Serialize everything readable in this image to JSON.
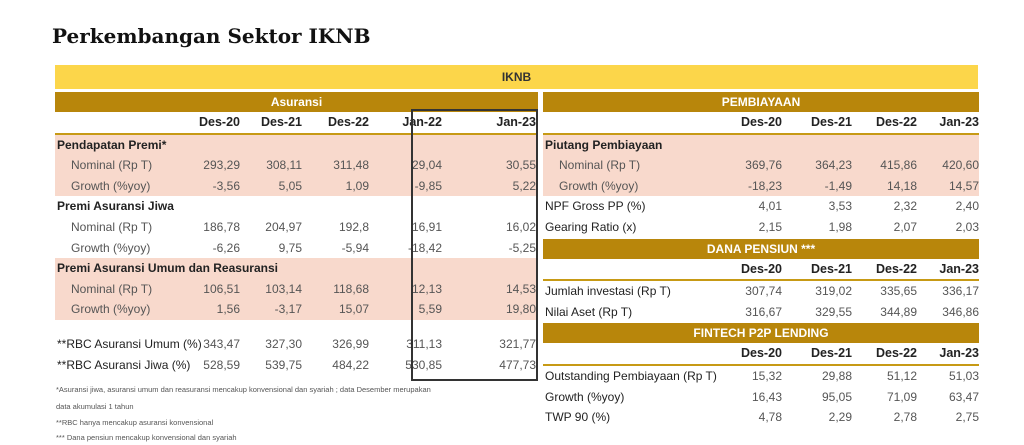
{
  "title": "Perkembangan Sektor IKNB",
  "iknb_label": "IKNB",
  "asuransi": {
    "header": "Asuransi",
    "columns": [
      "Des-20",
      "Des-21",
      "Des-22",
      "Jan-22",
      "Jan-23"
    ],
    "rows": [
      {
        "label": "Pendapatan Premi*",
        "type": "group",
        "pink": true,
        "values": []
      },
      {
        "label": "Nominal (Rp T)",
        "type": "item",
        "pink": true,
        "values": [
          "293,29",
          "308,11",
          "311,48",
          "29,04",
          "30,55"
        ]
      },
      {
        "label": "Growth (%yoy)",
        "type": "item",
        "pink": true,
        "values": [
          "-3,56",
          "5,05",
          "1,09",
          "-9,85",
          "5,22"
        ]
      },
      {
        "label": "Premi Asuransi Jiwa",
        "type": "group",
        "pink": false,
        "values": []
      },
      {
        "label": "Nominal (Rp T)",
        "type": "item",
        "pink": false,
        "values": [
          "186,78",
          "204,97",
          "192,8",
          "16,91",
          "16,02"
        ]
      },
      {
        "label": "Growth (%yoy)",
        "type": "item",
        "pink": false,
        "values": [
          "-6,26",
          "9,75",
          "-5,94",
          "-18,42",
          "-5,25"
        ]
      },
      {
        "label": "Premi Asuransi Umum dan Reasuransi",
        "type": "group",
        "pink": true,
        "values": []
      },
      {
        "label": "Nominal (Rp T)",
        "type": "item",
        "pink": true,
        "values": [
          "106,51",
          "103,14",
          "118,68",
          "12,13",
          "14,53"
        ]
      },
      {
        "label": "Growth (%yoy)",
        "type": "item",
        "pink": true,
        "values": [
          "1,56",
          "-3,17",
          "15,07",
          "5,59",
          "19,80"
        ]
      },
      {
        "label": "",
        "type": "blank",
        "pink": false,
        "values": []
      },
      {
        "label": "**RBC Asuransi Umum (%)",
        "type": "plain",
        "pink": false,
        "values": [
          "343,47",
          "327,30",
          "326,99",
          "311,13",
          "321,77"
        ]
      },
      {
        "label": "**RBC Asuransi Jiwa (%)",
        "type": "plain",
        "pink": false,
        "values": [
          "528,59",
          "539,75",
          "484,22",
          "530,85",
          "477,73"
        ]
      }
    ]
  },
  "pembiayaan": {
    "header": "PEMBIAYAAN",
    "columns": [
      "Des-20",
      "Des-21",
      "Des-22",
      "Jan-23"
    ],
    "rows": [
      {
        "label": "Piutang Pembiayaan",
        "type": "group",
        "pink": true,
        "values": []
      },
      {
        "label": "Nominal (Rp T)",
        "type": "item",
        "pink": true,
        "values": [
          "369,76",
          "364,23",
          "415,86",
          "420,60"
        ]
      },
      {
        "label": "Growth (%yoy)",
        "type": "item",
        "pink": true,
        "values": [
          "-18,23",
          "-1,49",
          "14,18",
          "14,57"
        ]
      },
      {
        "label": "NPF Gross PP (%)",
        "type": "plain",
        "pink": false,
        "values": [
          "4,01",
          "3,53",
          "2,32",
          "2,40"
        ]
      },
      {
        "label": "Gearing Ratio (x)",
        "type": "plain",
        "pink": false,
        "values": [
          "2,15",
          "1,98",
          "2,07",
          "2,03"
        ]
      }
    ]
  },
  "dana_pensiun": {
    "header": "DANA PENSIUN ***",
    "columns": [
      "Des-20",
      "Des-21",
      "Des-22",
      "Jan-23"
    ],
    "rows": [
      {
        "label": "Jumlah investasi (Rp T)",
        "values": [
          "307,74",
          "319,02",
          "335,65",
          "336,17"
        ]
      },
      {
        "label": "Nilai Aset (Rp T)",
        "values": [
          "316,67",
          "329,55",
          "344,89",
          "346,86"
        ]
      }
    ]
  },
  "fintech": {
    "header": "FINTECH P2P LENDING",
    "columns": [
      "Des-20",
      "Des-21",
      "Des-22",
      "Jan-23"
    ],
    "rows": [
      {
        "label": "Outstanding Pembiayaan (Rp T)",
        "values": [
          "15,32",
          "29,88",
          "51,12",
          "51,03"
        ]
      },
      {
        "label": "Growth (%yoy)",
        "values": [
          "16,43",
          "95,05",
          "71,09",
          "63,47"
        ]
      },
      {
        "label": "TWP 90 (%)",
        "values": [
          "4,78",
          "2,29",
          "2,78",
          "2,75"
        ]
      }
    ]
  },
  "notes": [
    "*Asuransi jiwa, asuransi umum dan reasuransi mencakup konvensional dan syariah ; data Desember merupakan",
    "data akumulasi 1 tahun",
    "**RBC hanya mencakup asuransi konvensional",
    "*** Dana pensiun mencakup konvensional dan syariah"
  ]
}
